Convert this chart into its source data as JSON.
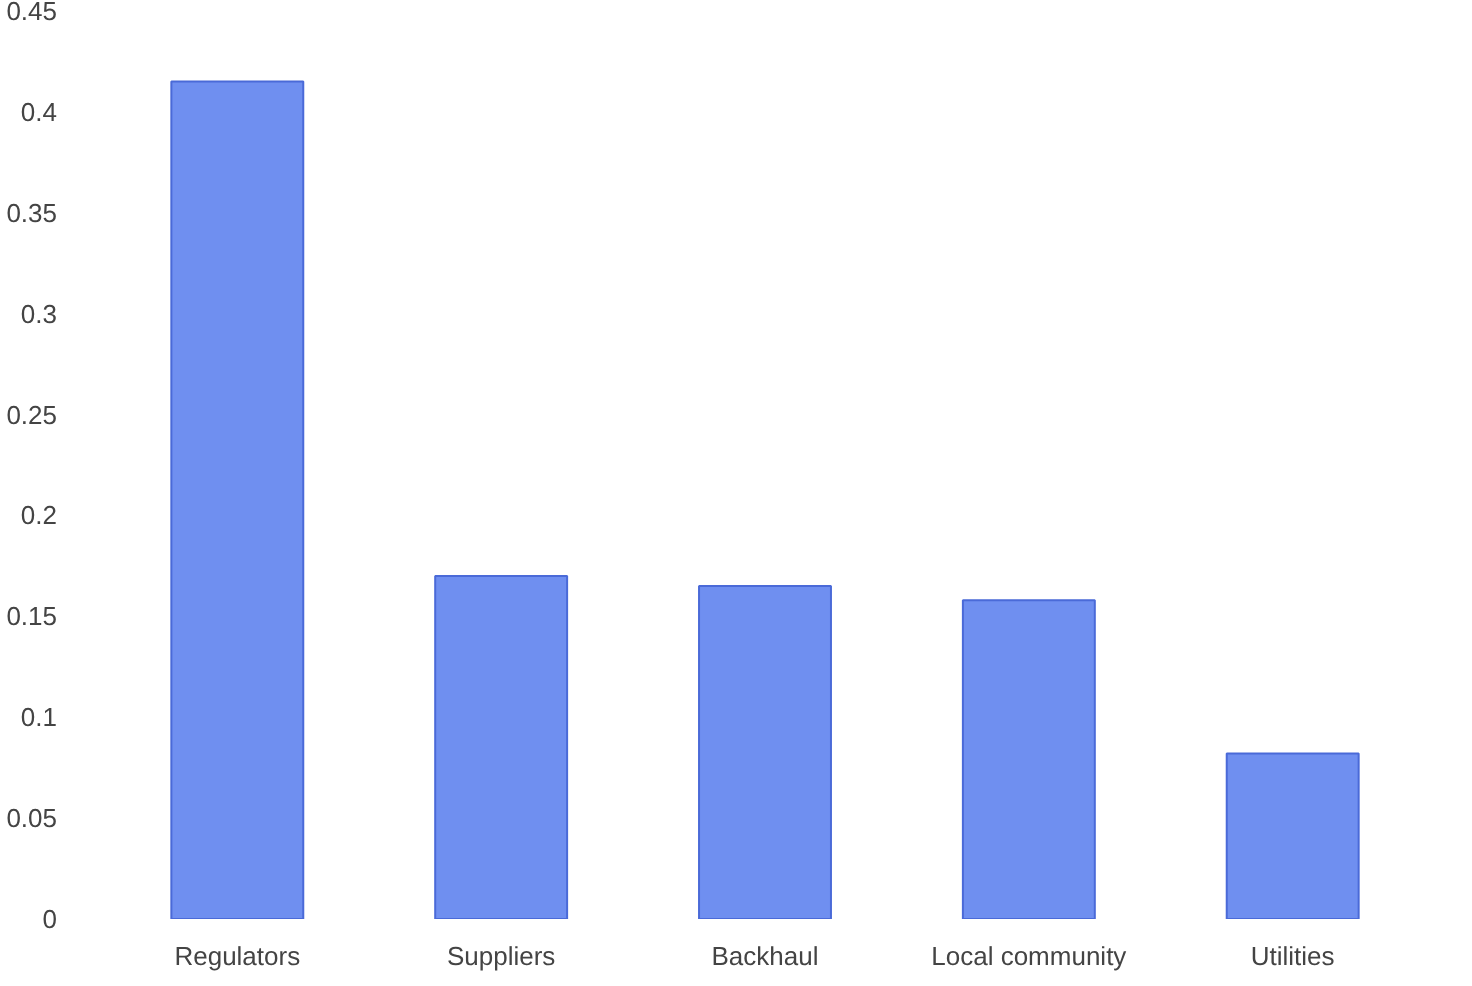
{
  "chart_data": {
    "type": "bar",
    "categories": [
      "Regulators",
      "Suppliers",
      "Backhaul",
      "Local community",
      "Utilities"
    ],
    "values": [
      0.415,
      0.17,
      0.165,
      0.158,
      0.082
    ],
    "color": "#6f8ff0",
    "ylim": [
      0,
      0.45
    ],
    "yticks": [
      0,
      0.05,
      0.1,
      0.15,
      0.2,
      0.25,
      0.3,
      0.35,
      0.4,
      0.45
    ],
    "grid": false
  }
}
